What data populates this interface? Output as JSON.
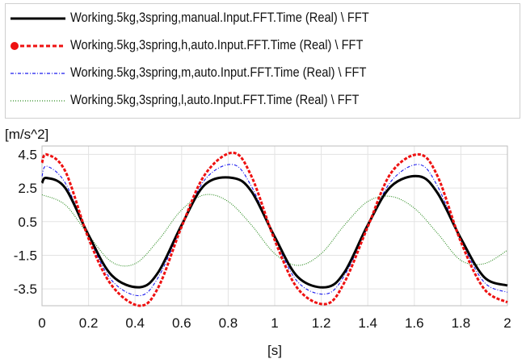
{
  "chart_data": {
    "type": "line",
    "title": "",
    "xlabel": "[s]",
    "ylabel": "[m/s^2]",
    "xlim": [
      0,
      2
    ],
    "ylim": [
      -4.5,
      5
    ],
    "x_ticks": [
      "0",
      "0.2",
      "0.4",
      "0.6",
      "0.8",
      "1",
      "1.2",
      "1.4",
      "1.6",
      "1.8",
      "2"
    ],
    "y_ticks": [
      "4.5",
      "2.5",
      "0.5",
      "-1.5",
      "-3.5"
    ],
    "y_tick_values": [
      4.5,
      2.5,
      0.5,
      -1.5,
      -3.5
    ],
    "grid": true,
    "legend_position": "top",
    "series": [
      {
        "name": "Working.5kg,3spring,manual.Input.FFT.Time (Real) \\ FFT",
        "color": "#000000",
        "style": "solid",
        "x": [
          0,
          0.02,
          0.1,
          0.2,
          0.3,
          0.42,
          0.5,
          0.6,
          0.7,
          0.82,
          0.9,
          1.0,
          1.1,
          1.22,
          1.3,
          1.4,
          1.5,
          1.62,
          1.7,
          1.8,
          1.9,
          2.0
        ],
        "y": [
          2.8,
          3.1,
          2.5,
          -0.3,
          -2.7,
          -3.4,
          -2.5,
          0.3,
          2.7,
          3.1,
          2.3,
          -0.4,
          -2.8,
          -3.4,
          -2.5,
          0.3,
          2.6,
          3.2,
          2.2,
          -0.5,
          -2.8,
          -3.3
        ]
      },
      {
        "name": "Working.5kg,3spring,h,auto.Input.FFT.Time (Real) \\ FFT",
        "color": "#ee1111",
        "style": "dashed-marker",
        "x": [
          0,
          0.02,
          0.1,
          0.2,
          0.3,
          0.42,
          0.5,
          0.6,
          0.7,
          0.82,
          0.9,
          1.0,
          1.1,
          1.22,
          1.3,
          1.4,
          1.5,
          1.62,
          1.7,
          1.8,
          1.9,
          2.0
        ],
        "y": [
          4.0,
          4.5,
          3.5,
          -0.5,
          -3.3,
          -4.5,
          -3.4,
          0.2,
          3.3,
          4.6,
          3.2,
          -0.6,
          -3.5,
          -4.4,
          -3.1,
          0.2,
          3.4,
          4.5,
          3.2,
          -0.7,
          -3.5,
          -4.3
        ]
      },
      {
        "name": "Working.5kg,3spring,m,auto.Input.FFT.Time (Real) \\ FFT",
        "color": "#1a1aee",
        "style": "dash-dot",
        "x": [
          0,
          0.02,
          0.1,
          0.2,
          0.3,
          0.42,
          0.5,
          0.6,
          0.7,
          0.82,
          0.9,
          1.0,
          1.1,
          1.22,
          1.3,
          1.4,
          1.5,
          1.62,
          1.7,
          1.8,
          1.9,
          2.0
        ],
        "y": [
          3.2,
          3.8,
          2.8,
          -0.4,
          -3.0,
          -3.9,
          -2.8,
          0.2,
          3.0,
          3.9,
          2.6,
          -0.5,
          -3.1,
          -3.8,
          -2.7,
          0.2,
          2.9,
          3.9,
          2.6,
          -0.6,
          -3.1,
          -3.7
        ]
      },
      {
        "name": "Working.5kg,3spring,l,auto.Input.FFT.Time (Real) \\ FFT",
        "color": "#2a8a1e",
        "style": "dotted",
        "x": [
          0,
          0.1,
          0.2,
          0.3,
          0.4,
          0.5,
          0.6,
          0.7,
          0.8,
          0.9,
          1.0,
          1.1,
          1.2,
          1.3,
          1.4,
          1.5,
          1.6,
          1.7,
          1.8,
          1.9,
          2.0
        ],
        "y": [
          2.1,
          1.5,
          -0.3,
          -1.9,
          -2.0,
          -0.6,
          1.2,
          2.1,
          1.7,
          0.3,
          -1.4,
          -2.1,
          -1.4,
          0.3,
          1.7,
          2.0,
          1.3,
          -0.2,
          -1.8,
          -2.0,
          -1.2
        ]
      }
    ]
  }
}
